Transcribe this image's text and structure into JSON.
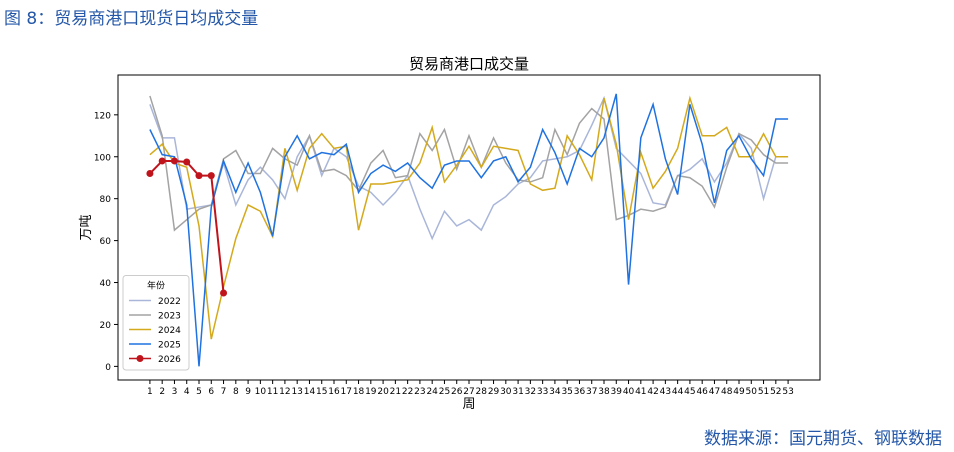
{
  "figure_title": "图 8：贸易商港口现货日均成交量",
  "source": "数据来源：国元期货、钢联数据",
  "chart_data": {
    "type": "line",
    "title": "贸易商港口成交量",
    "x_label": "周",
    "y_label": "万吨",
    "legend_title": "年份",
    "legend": "lower left",
    "x": [
      1,
      2,
      3,
      4,
      5,
      6,
      7,
      8,
      9,
      10,
      11,
      12,
      13,
      14,
      15,
      16,
      17,
      18,
      19,
      20,
      21,
      22,
      23,
      24,
      25,
      26,
      27,
      28,
      29,
      30,
      31,
      32,
      33,
      34,
      35,
      36,
      37,
      38,
      39,
      40,
      41,
      42,
      43,
      44,
      45,
      46,
      47,
      48,
      49,
      50,
      51,
      52,
      53
    ],
    "xlim": [
      -1.6,
      55.6
    ],
    "xticks": [
      1,
      2,
      3,
      4,
      5,
      6,
      7,
      8,
      9,
      10,
      11,
      12,
      13,
      14,
      15,
      16,
      17,
      18,
      19,
      20,
      21,
      22,
      23,
      24,
      25,
      26,
      27,
      28,
      29,
      30,
      31,
      32,
      33,
      34,
      35,
      36,
      37,
      38,
      39,
      40,
      41,
      42,
      43,
      44,
      45,
      46,
      47,
      48,
      49,
      50,
      51,
      52,
      53
    ],
    "ylim": [
      -6.5,
      139
    ],
    "yticks": [
      0,
      20,
      40,
      60,
      80,
      100,
      120
    ],
    "series": [
      {
        "name": "2022",
        "color": "#a9b6d9",
        "values": [
          125,
          109,
          109,
          75,
          76,
          77,
          97,
          77,
          89,
          95,
          89,
          80,
          100,
          110,
          91,
          104,
          100,
          86,
          83,
          77,
          83,
          91,
          75,
          61,
          74,
          67,
          70,
          65,
          77,
          81,
          87,
          90,
          98,
          99,
          100,
          103,
          115,
          128,
          104,
          98,
          92,
          78,
          77,
          91,
          94,
          99,
          88,
          97,
          111,
          104,
          80,
          100,
          100
        ]
      },
      {
        "name": "2023",
        "color": "#a3a3a3",
        "values": [
          129,
          110,
          65,
          70,
          75,
          77,
          99,
          103,
          92,
          92,
          104,
          99,
          96,
          110,
          93,
          94,
          91,
          84,
          97,
          103,
          90,
          91,
          111,
          103,
          113,
          94,
          110,
          95,
          109,
          97,
          89,
          88,
          90,
          113,
          101,
          116,
          123,
          118,
          70,
          72,
          75,
          74,
          76,
          91,
          90,
          86,
          76,
          95,
          111,
          108,
          101,
          97,
          97
        ]
      },
      {
        "name": "2024",
        "color": "#d4a91c",
        "values": [
          101,
          106,
          97,
          95,
          67,
          13,
          38,
          61,
          77,
          74,
          62,
          104,
          84,
          104,
          111,
          104,
          105,
          65,
          87,
          87,
          88,
          89,
          97,
          114,
          88,
          96,
          105,
          95,
          105,
          104,
          103,
          87,
          84,
          85,
          110,
          101,
          89,
          128,
          106,
          70,
          102,
          85,
          93,
          104,
          128,
          110,
          110,
          114,
          100,
          100,
          111,
          100,
          100
        ]
      },
      {
        "name": "2025",
        "color": "#1f72e0",
        "values": [
          113,
          101,
          100,
          77,
          0,
          76,
          98,
          83,
          97,
          83,
          62,
          100,
          110,
          99,
          102,
          101,
          106,
          83,
          92,
          96,
          93,
          97,
          90,
          85,
          96,
          98,
          98,
          90,
          98,
          100,
          88,
          95,
          113,
          102,
          87,
          104,
          100,
          109,
          130,
          39,
          109,
          125,
          99,
          82,
          125,
          106,
          78,
          103,
          110,
          99,
          91,
          118,
          118
        ]
      },
      {
        "name": "2026",
        "color": "#c0141c",
        "marker": "o",
        "values": [
          92,
          98,
          98,
          97.5,
          91,
          91,
          35,
          null,
          null,
          null,
          null,
          null,
          null,
          null,
          null,
          null,
          null,
          null,
          null,
          null,
          null,
          null,
          null,
          null,
          null,
          null,
          null,
          null,
          null,
          null,
          null,
          null,
          null,
          null,
          null,
          null,
          null,
          null,
          null,
          null,
          null,
          null,
          null,
          null,
          null,
          null,
          null,
          null,
          null,
          null,
          null,
          null,
          null
        ]
      }
    ]
  }
}
